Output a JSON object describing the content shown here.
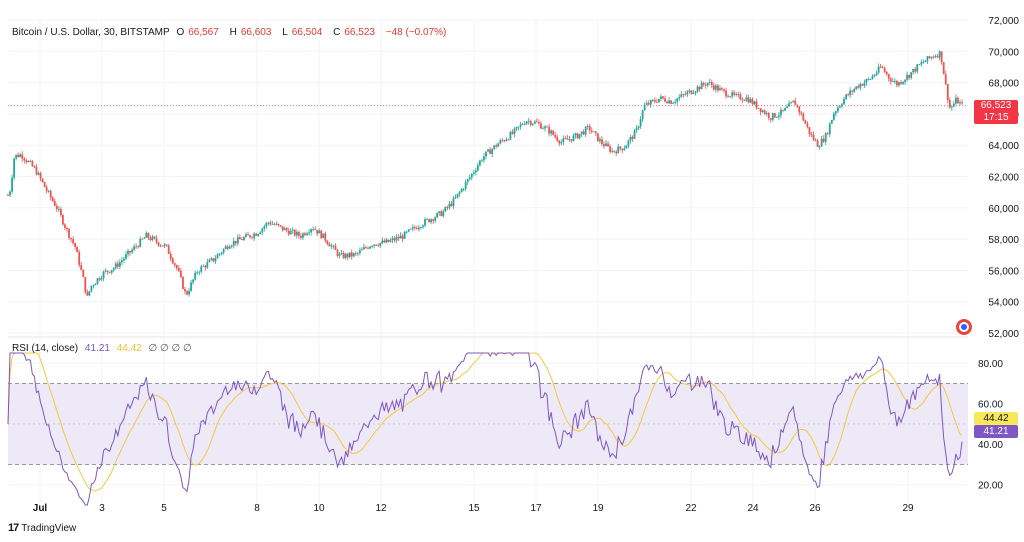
{
  "header": {
    "symbol": "Bitcoin / U.S. Dollar, 30, BITSTAMP",
    "o_label": "O",
    "o_value": "66,567",
    "h_label": "H",
    "h_value": "66,603",
    "l_label": "L",
    "l_value": "66,504",
    "c_label": "C",
    "c_value": "66,523",
    "change": "−48 (−0.07%)"
  },
  "price_badge": {
    "price": "66,523",
    "countdown": "17:15"
  },
  "rsi_header": {
    "label": "RSI (14, close)",
    "rsi_value": "41.21",
    "ma_value": "44.42",
    "na": "∅ ∅ ∅ ∅"
  },
  "rsi_badges": {
    "ma": "44.42",
    "rsi": "41.21"
  },
  "brand": {
    "name": "TradingView"
  },
  "colors": {
    "up": "#26a69a",
    "down": "#ef5350",
    "rsi": "#7e57c2",
    "rsi_ma": "#f5c842",
    "band": "#ede9f7"
  },
  "chart_data": [
    {
      "type": "candlestick",
      "title": "Bitcoin / U.S. Dollar, 30, BITSTAMP",
      "ylim": [
        52000,
        72000
      ],
      "y_ticks": [
        "72,000",
        "70,000",
        "68,000",
        "66,000",
        "64,000",
        "62,000",
        "60,000",
        "58,000",
        "56,000",
        "54,000",
        "52,000"
      ],
      "x_ticks": [
        "Jul",
        "3",
        "5",
        "8",
        "10",
        "12",
        "15",
        "17",
        "19",
        "22",
        "24",
        "26",
        "29"
      ],
      "last_price": 66523,
      "path_anchors": [
        [
          0,
          60800
        ],
        [
          0.03,
          61200
        ],
        [
          0.08,
          63300
        ],
        [
          0.17,
          63400
        ],
        [
          0.35,
          62400
        ],
        [
          0.5,
          61000
        ],
        [
          0.62,
          60000
        ],
        [
          0.75,
          58500
        ],
        [
          0.85,
          57500
        ],
        [
          0.95,
          55500
        ],
        [
          1.0,
          54200
        ],
        [
          1.05,
          55000
        ],
        [
          1.2,
          55800
        ],
        [
          1.35,
          56200
        ],
        [
          1.55,
          57200
        ],
        [
          1.75,
          58200
        ],
        [
          2.0,
          57500
        ],
        [
          2.15,
          56000
        ],
        [
          2.25,
          54400
        ],
        [
          2.4,
          56000
        ],
        [
          2.6,
          56700
        ],
        [
          2.8,
          57700
        ],
        [
          3.0,
          58100
        ],
        [
          3.15,
          58400
        ],
        [
          3.3,
          59100
        ],
        [
          3.5,
          58600
        ],
        [
          3.7,
          58200
        ],
        [
          3.85,
          58800
        ],
        [
          4.0,
          58100
        ],
        [
          4.2,
          56900
        ],
        [
          4.4,
          57000
        ],
        [
          4.6,
          57700
        ],
        [
          4.8,
          57800
        ],
        [
          5.0,
          58200
        ],
        [
          5.2,
          58900
        ],
        [
          5.35,
          59300
        ],
        [
          5.5,
          59700
        ],
        [
          5.65,
          60500
        ],
        [
          5.85,
          62000
        ],
        [
          6.0,
          63200
        ],
        [
          6.2,
          64100
        ],
        [
          6.4,
          64800
        ],
        [
          6.55,
          65600
        ],
        [
          6.7,
          65400
        ],
        [
          6.85,
          64900
        ],
        [
          7.0,
          64200
        ],
        [
          7.2,
          64600
        ],
        [
          7.35,
          65100
        ],
        [
          7.5,
          64200
        ],
        [
          7.65,
          63600
        ],
        [
          7.8,
          63900
        ],
        [
          7.95,
          64900
        ],
        [
          8.05,
          66500
        ],
        [
          8.25,
          67000
        ],
        [
          8.4,
          66800
        ],
        [
          8.55,
          67200
        ],
        [
          8.7,
          67600
        ],
        [
          8.85,
          68000
        ],
        [
          9.05,
          67400
        ],
        [
          9.2,
          67100
        ],
        [
          9.35,
          67000
        ],
        [
          9.5,
          66400
        ],
        [
          9.65,
          65800
        ],
        [
          9.8,
          66100
        ],
        [
          9.95,
          66800
        ],
        [
          10.05,
          65800
        ],
        [
          10.15,
          64700
        ],
        [
          10.25,
          64000
        ],
        [
          10.35,
          64600
        ],
        [
          10.45,
          66100
        ],
        [
          10.6,
          67100
        ],
        [
          10.75,
          67800
        ],
        [
          10.9,
          68200
        ],
        [
          11.05,
          69000
        ],
        [
          11.15,
          68300
        ],
        [
          11.25,
          67900
        ],
        [
          11.4,
          68500
        ],
        [
          11.55,
          69200
        ],
        [
          11.7,
          69700
        ],
        [
          11.8,
          69900
        ],
        [
          11.87,
          67600
        ],
        [
          11.92,
          66300
        ],
        [
          12.0,
          66900
        ],
        [
          12.07,
          66523
        ]
      ]
    },
    {
      "type": "line",
      "title": "RSI (14, close)",
      "ylim": [
        10,
        85
      ],
      "y_ticks": [
        "80.00",
        "60.00",
        "40.00",
        "20.00"
      ],
      "bands": [
        30,
        70
      ],
      "midline": 50,
      "series": [
        {
          "name": "RSI",
          "last": 41.21
        },
        {
          "name": "RSI-based MA",
          "last": 44.42
        }
      ]
    }
  ]
}
